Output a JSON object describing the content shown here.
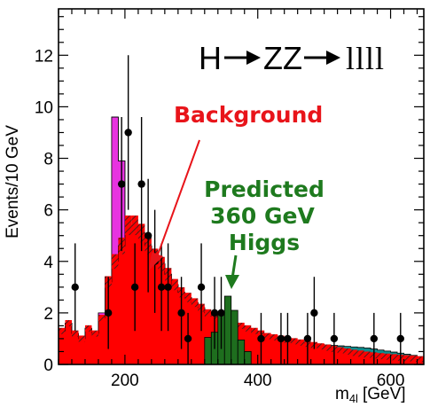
{
  "chart_data": {
    "type": "histogram",
    "title_main": "H",
    "title_mid": "ZZ",
    "title_end": "llll",
    "ylabel": "Events/10 GeV",
    "xlabel": "m",
    "xlabel_sub": "4l",
    "xlabel_unit": "[GeV]",
    "xlim": [
      100,
      650
    ],
    "ylim": [
      0,
      13.8
    ],
    "xticks": [
      200,
      400,
      600
    ],
    "yticks": [
      0,
      2,
      4,
      6,
      8,
      10,
      12
    ],
    "bin_width": 10,
    "colors": {
      "background": "#ff0000",
      "magenta": "#e733e0",
      "teal": "#0e8c8c",
      "signal": "#1e6e1e",
      "data": "#000000"
    },
    "background_annotation": "Background",
    "signal_annotation_lines": [
      "Predicted",
      "360 GeV",
      "Higgs"
    ],
    "series": [
      {
        "name": "Background",
        "bins_from": 100,
        "values": [
          1.3,
          1.6,
          1.2,
          1.0,
          1.4,
          1.2,
          1.8,
          3.2,
          4.0,
          4.6,
          5.4,
          5.4,
          5.1,
          4.6,
          4.2,
          3.9,
          3.5,
          3.1,
          2.8,
          2.6,
          2.4,
          2.2,
          2.0,
          1.9,
          1.8,
          1.7,
          1.6,
          1.5,
          1.4,
          1.3,
          1.2,
          1.1,
          1.05,
          1.0,
          0.95,
          0.9,
          0.85,
          0.8,
          0.75,
          0.7,
          0.65,
          0.6,
          0.55,
          0.5,
          0.45,
          0.42,
          0.38,
          0.35,
          0.32,
          0.3,
          0.28,
          0.26,
          0.24,
          0.22,
          0.2
        ]
      },
      {
        "name": "Background (magenta)",
        "bins_from": 100,
        "values": [
          1.3,
          1.6,
          1.2,
          1.0,
          1.4,
          1.2,
          2.0,
          3.4,
          9.6,
          7.9,
          5.4,
          5.4,
          5.1,
          4.6,
          4.2,
          3.9,
          3.5,
          3.1,
          2.8,
          2.6,
          2.4,
          2.2,
          2.0,
          1.9,
          1.8,
          1.7,
          1.6,
          1.5,
          1.4,
          1.3,
          1.2,
          1.1,
          1.05,
          1.0,
          0.95,
          0.9,
          0.85,
          0.8,
          0.75,
          0.7,
          0.65,
          0.6,
          0.55,
          0.5,
          0.45,
          0.42,
          0.38,
          0.35,
          0.32,
          0.3,
          0.28,
          0.26,
          0.24,
          0.22,
          0.2
        ]
      },
      {
        "name": "Background (teal)",
        "bins_from": 100,
        "values": [
          1.3,
          1.6,
          1.2,
          1.0,
          1.4,
          1.2,
          2.0,
          3.4,
          9.6,
          7.9,
          5.4,
          5.4,
          5.1,
          4.6,
          4.2,
          3.9,
          3.5,
          3.1,
          2.8,
          2.6,
          2.4,
          2.2,
          2.0,
          1.9,
          1.8,
          1.7,
          1.6,
          1.5,
          1.4,
          1.3,
          1.2,
          1.1,
          1.05,
          1.0,
          0.95,
          0.9,
          0.85,
          0.8,
          0.8,
          0.78,
          0.76,
          0.74,
          0.72,
          0.7,
          0.68,
          0.66,
          0.64,
          0.6,
          0.56,
          0.52,
          0.48,
          0.44,
          0.4,
          0.35,
          0.3
        ]
      },
      {
        "name": "Predicted 360 GeV Higgs",
        "bins": [
          [
            320,
            1.05
          ],
          [
            330,
            1.25
          ],
          [
            340,
            2.0
          ],
          [
            350,
            2.65
          ],
          [
            360,
            2.1
          ],
          [
            370,
            0.95
          ],
          [
            380,
            0.5
          ]
        ]
      }
    ],
    "data_points": [
      {
        "x": 125,
        "y": 3.0,
        "err": 1.7
      },
      {
        "x": 175,
        "y": 2.0,
        "err": 1.4
      },
      {
        "x": 195,
        "y": 7.0,
        "err": 2.6
      },
      {
        "x": 205,
        "y": 9.0,
        "err": 3.0
      },
      {
        "x": 215,
        "y": 3.0,
        "err": 1.7
      },
      {
        "x": 225,
        "y": 7.0,
        "err": 2.6
      },
      {
        "x": 235,
        "y": 5.0,
        "err": 2.2
      },
      {
        "x": 245,
        "y": 4.0,
        "err": 2.0
      },
      {
        "x": 255,
        "y": 3.0,
        "err": 1.7
      },
      {
        "x": 265,
        "y": 3.0,
        "err": 1.7
      },
      {
        "x": 285,
        "y": 2.0,
        "err": 1.4
      },
      {
        "x": 295,
        "y": 1.0,
        "err": 1.0
      },
      {
        "x": 315,
        "y": 3.0,
        "err": 1.7
      },
      {
        "x": 335,
        "y": 2.0,
        "err": 1.4
      },
      {
        "x": 345,
        "y": 2.0,
        "err": 1.4
      },
      {
        "x": 405,
        "y": 1.0,
        "err": 1.0
      },
      {
        "x": 435,
        "y": 1.0,
        "err": 1.0
      },
      {
        "x": 445,
        "y": 1.0,
        "err": 1.0
      },
      {
        "x": 475,
        "y": 1.0,
        "err": 1.0
      },
      {
        "x": 485,
        "y": 2.0,
        "err": 1.4
      },
      {
        "x": 515,
        "y": 1.0,
        "err": 1.0
      },
      {
        "x": 575,
        "y": 1.0,
        "err": 1.0
      },
      {
        "x": 615,
        "y": 1.0,
        "err": 1.0
      }
    ]
  }
}
